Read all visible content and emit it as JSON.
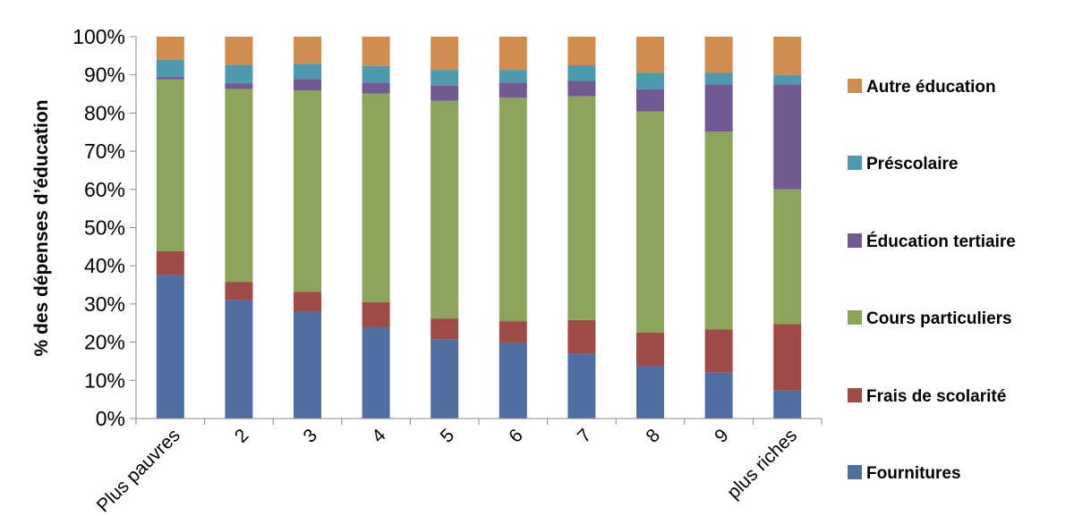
{
  "chart_data": {
    "type": "bar",
    "stacked": true,
    "percent": true,
    "categories": [
      "Plus pauvres",
      "2",
      "3",
      "4",
      "5",
      "6",
      "7",
      "8",
      "9",
      "plus riches"
    ],
    "ylabel": "% des dépenses d’éducation",
    "xlabel": "",
    "ylim": [
      0,
      100
    ],
    "yticks": [
      "0%",
      "10%",
      "20%",
      "30%",
      "40%",
      "50%",
      "60%",
      "70%",
      "80%",
      "90%",
      "100%"
    ],
    "grid": false,
    "legend_position": "right",
    "series": [
      {
        "name": "Fournitures",
        "color": "#4f6fa3",
        "values": [
          37.5,
          31,
          28,
          24,
          20.7,
          19.8,
          17,
          13.8,
          12,
          7.3
        ]
      },
      {
        "name": "Frais de scolarité",
        "color": "#a04a46",
        "values": [
          6.3,
          4.8,
          5.2,
          6.5,
          5.5,
          5.7,
          8.8,
          8.7,
          11.3,
          17.4
        ]
      },
      {
        "name": "Cours particuliers",
        "color": "#8ca55a",
        "values": [
          45,
          50.5,
          52.7,
          54.6,
          57,
          58.5,
          58.6,
          57.9,
          51.8,
          35.3
        ]
      },
      {
        "name": "Éducation tertiaire",
        "color": "#705a91",
        "values": [
          0.7,
          1.5,
          3,
          2.9,
          4,
          4,
          4,
          5.8,
          12.4,
          27.5
        ]
      },
      {
        "name": "Préscolaire",
        "color": "#4d99b0",
        "values": [
          4.5,
          4.8,
          4,
          4.3,
          4.1,
          3.3,
          4.1,
          4.2,
          3.1,
          2.5
        ]
      },
      {
        "name": "Autre éducation",
        "color": "#d08d4f",
        "values": [
          6,
          7.4,
          7.1,
          7.7,
          8.7,
          8.7,
          7.5,
          9.6,
          9.4,
          10
        ]
      }
    ],
    "legend_order": [
      "Autre éducation",
      "Préscolaire",
      "Éducation tertiaire",
      "Cours particuliers",
      "Frais de scolarité",
      "Fournitures"
    ]
  }
}
